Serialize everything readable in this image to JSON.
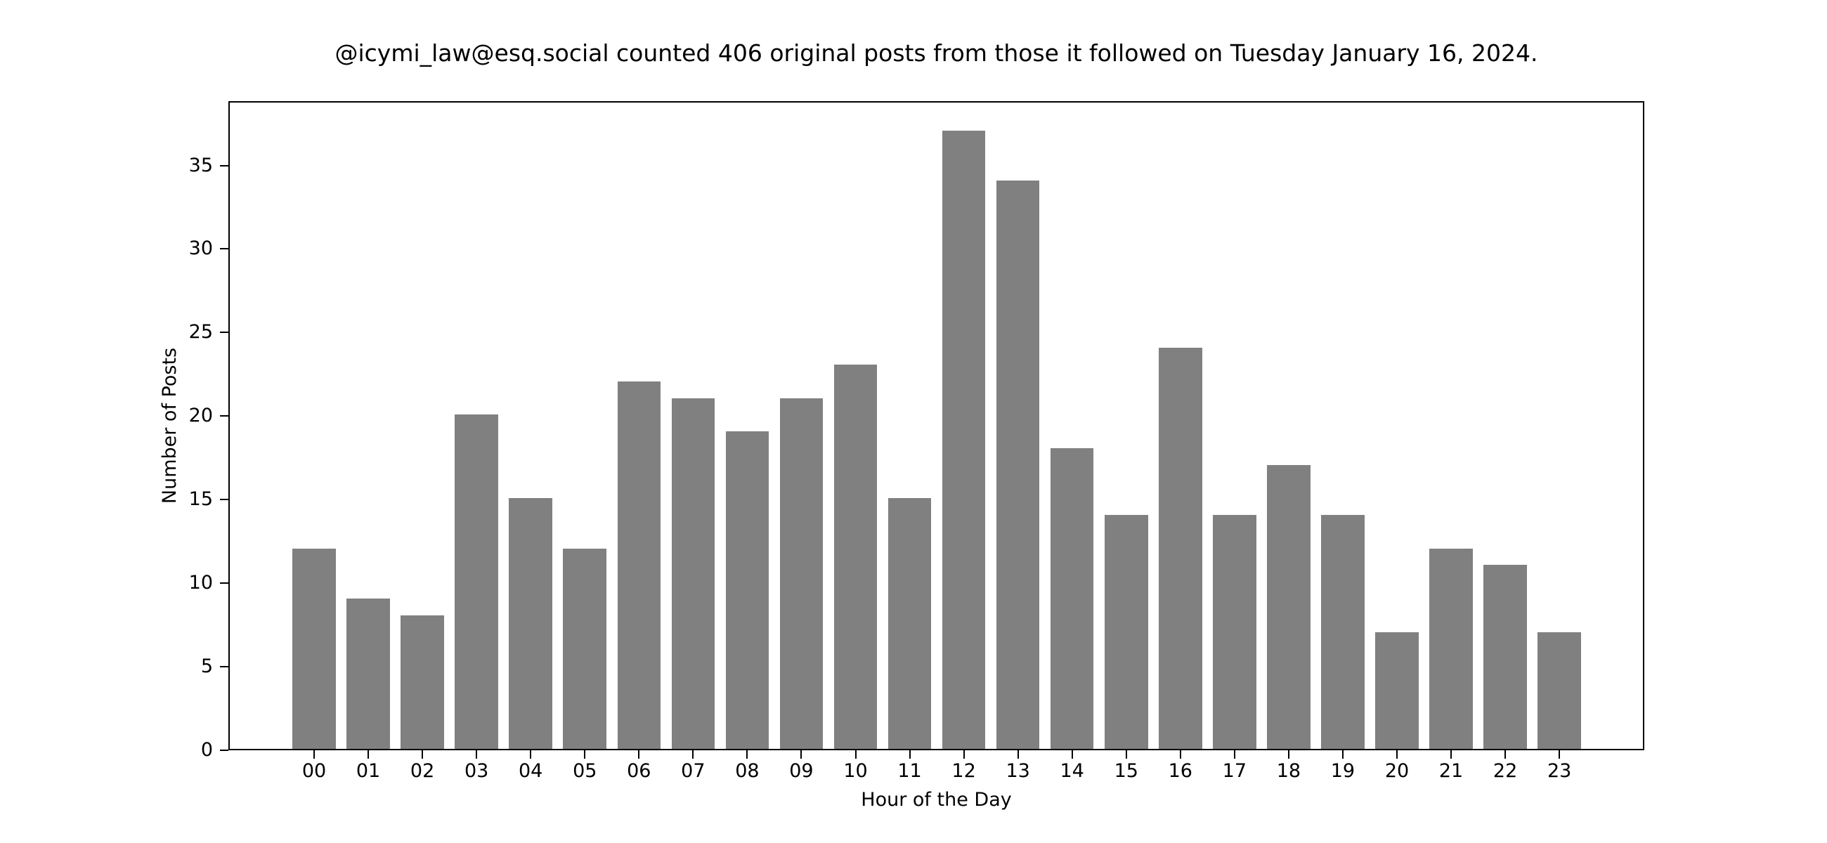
{
  "chart_data": {
    "type": "bar",
    "title": "@icymi_law@esq.social counted 406 original posts from those it followed on Tuesday January 16, 2024.",
    "xlabel": "Hour of the Day",
    "ylabel": "Number of Posts",
    "categories": [
      "00",
      "01",
      "02",
      "03",
      "04",
      "05",
      "06",
      "07",
      "08",
      "09",
      "10",
      "11",
      "12",
      "13",
      "14",
      "15",
      "16",
      "17",
      "18",
      "19",
      "20",
      "21",
      "22",
      "23"
    ],
    "values": [
      12,
      9,
      8,
      20,
      15,
      12,
      22,
      21,
      19,
      21,
      23,
      15,
      37,
      34,
      18,
      14,
      24,
      14,
      17,
      14,
      7,
      12,
      11,
      7
    ],
    "yticks": [
      0,
      5,
      10,
      15,
      20,
      25,
      30,
      35
    ],
    "ylim": [
      0,
      38.85
    ],
    "grid": false,
    "legend": null,
    "bar_color": "#808080"
  }
}
